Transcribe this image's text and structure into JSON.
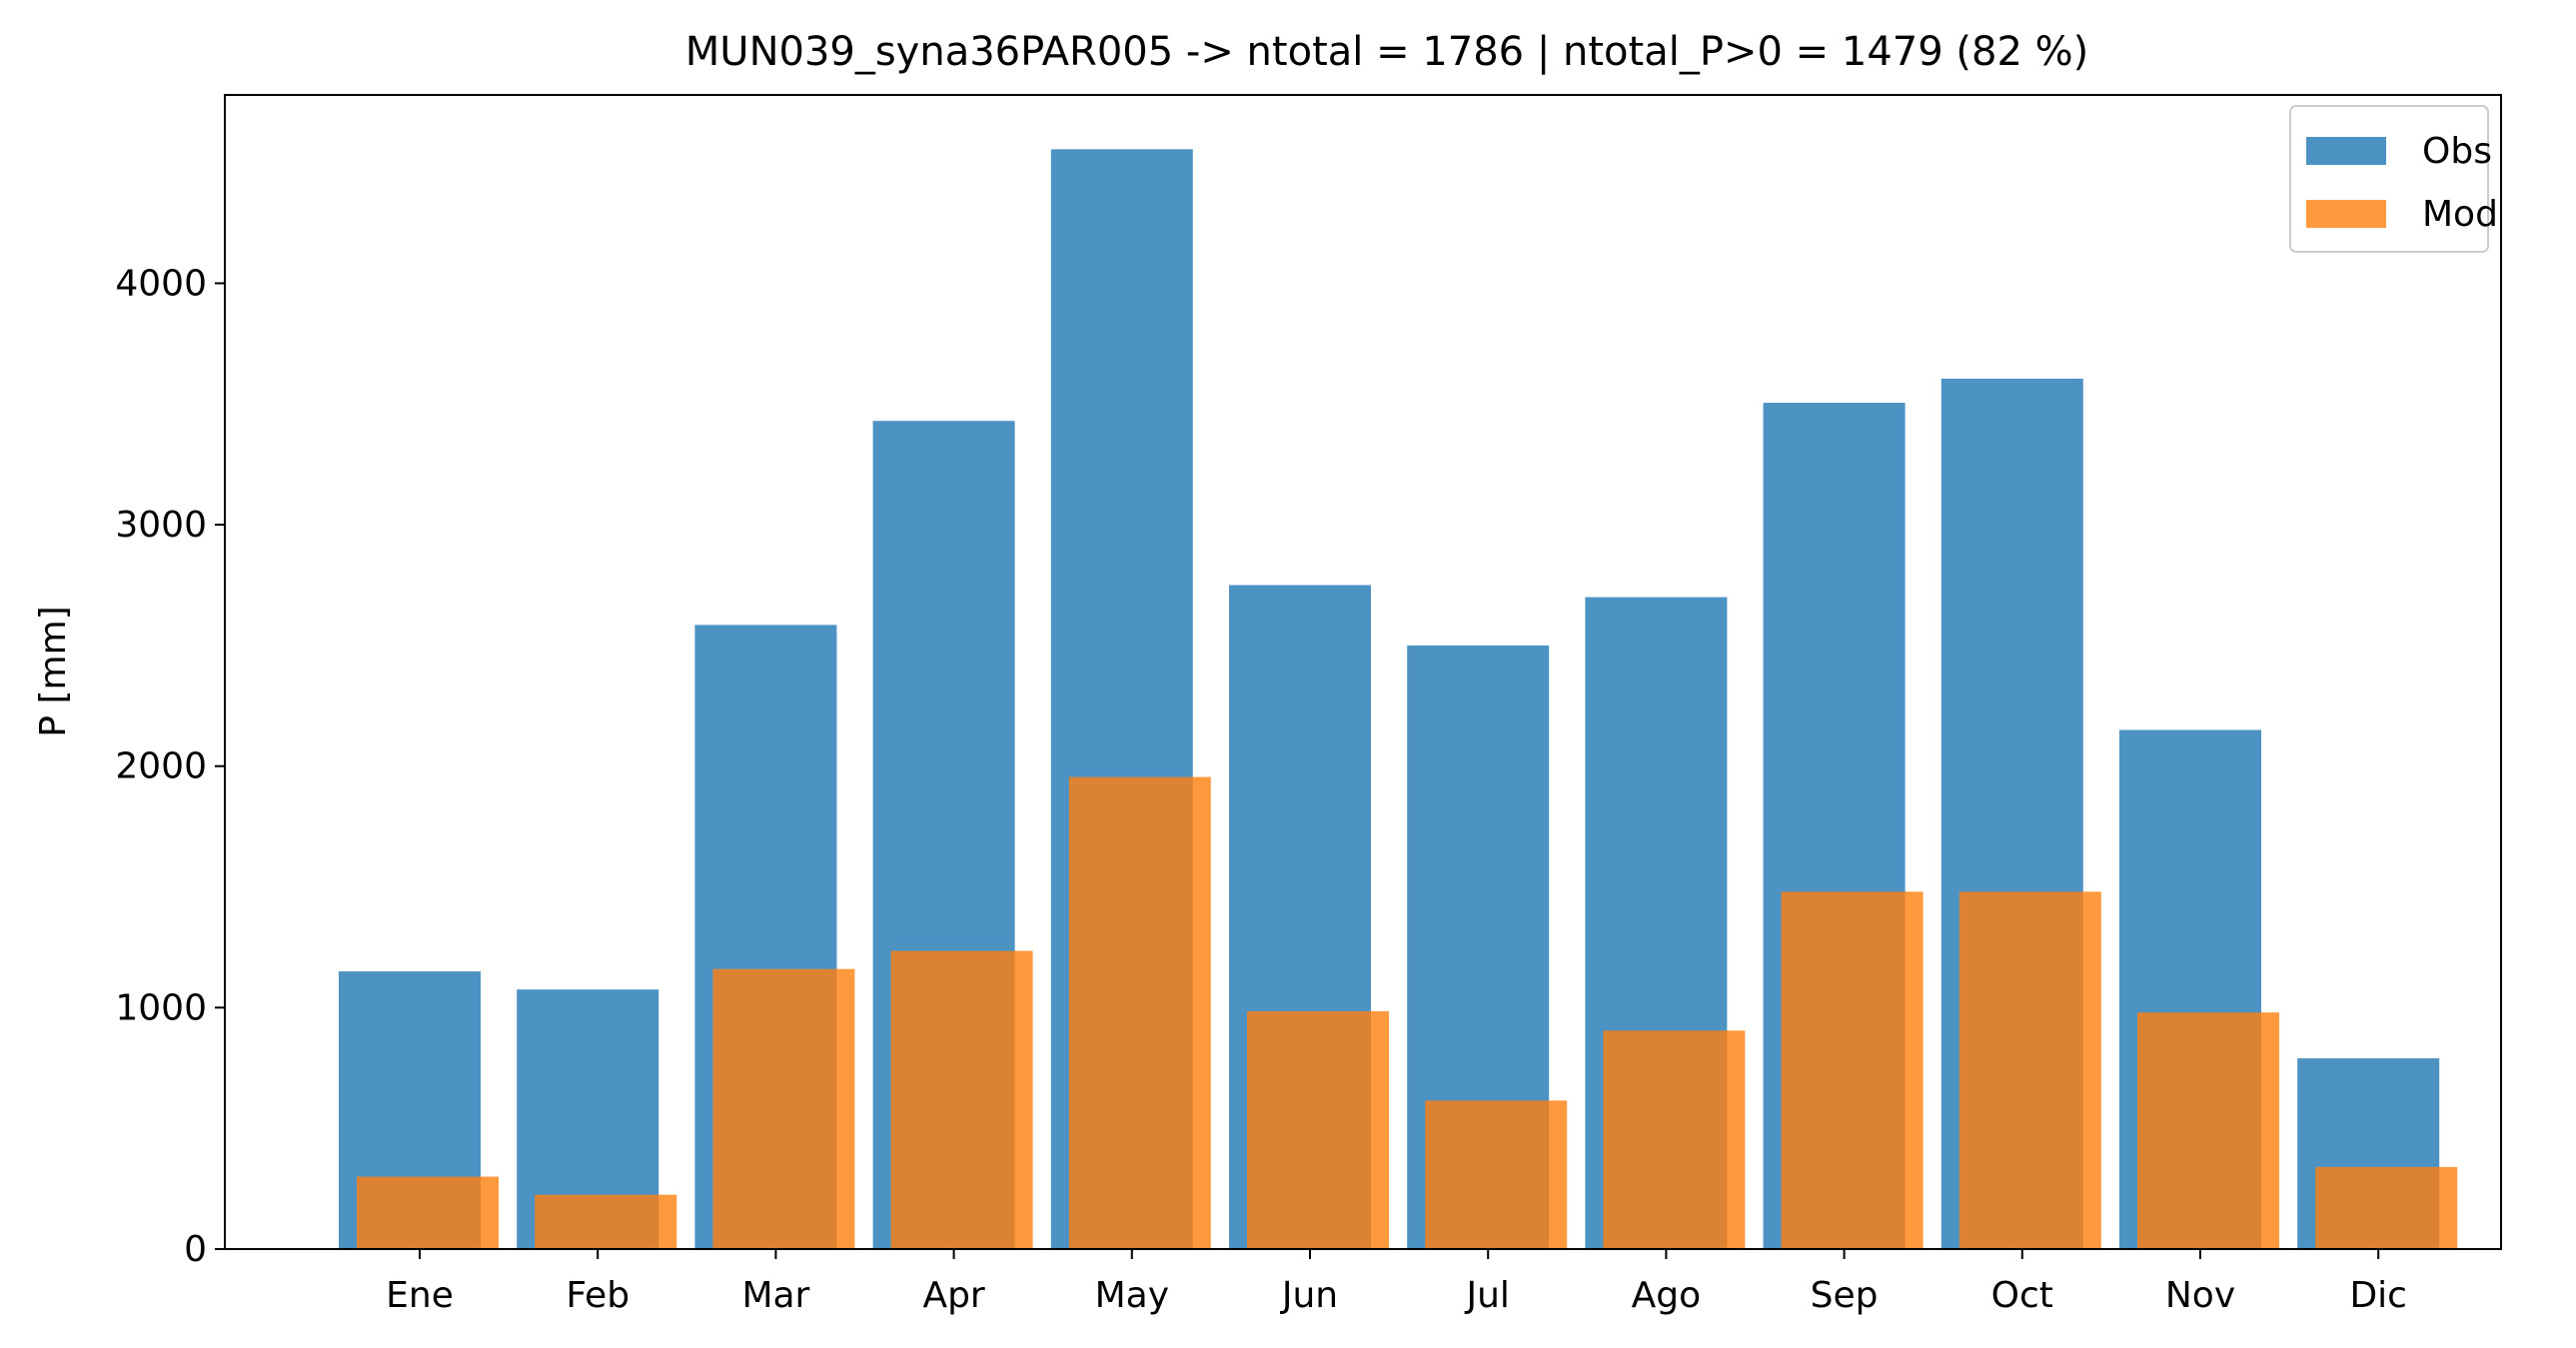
{
  "chart_data": {
    "type": "bar",
    "title": "MUN039_syna36PAR005 -> ntotal = 1786 | ntotal_P>0 = 1479 (82 %)",
    "xlabel": "",
    "ylabel": "P [mm]",
    "categories": [
      "Ene",
      "Feb",
      "Mar",
      "Apr",
      "May",
      "Jun",
      "Jul",
      "Ago",
      "Sep",
      "Oct",
      "Nov",
      "Dic"
    ],
    "series": [
      {
        "name": "Obs",
        "color": "#1f77b4",
        "opacity": 0.8,
        "values": [
          1150,
          1075,
          2585,
          3430,
          4555,
          2750,
          2500,
          2700,
          3505,
          3605,
          2150,
          790
        ]
      },
      {
        "name": "Mod",
        "color": "#ff7f0e",
        "opacity": 0.8,
        "values": [
          300,
          225,
          1160,
          1235,
          1955,
          985,
          615,
          905,
          1480,
          1480,
          980,
          340
        ]
      }
    ],
    "yticks": [
      "0",
      "1000",
      "2000",
      "3000",
      "4000"
    ],
    "ylim": [
      0,
      4780
    ],
    "grid": false,
    "legend_position": "top-right"
  }
}
